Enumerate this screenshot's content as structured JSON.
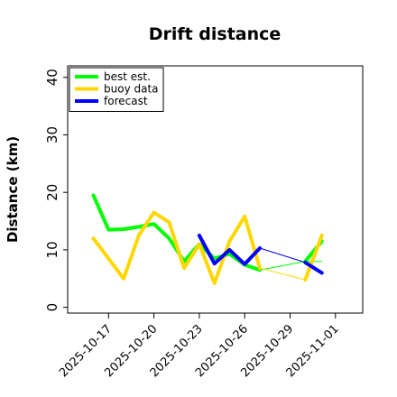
{
  "chart_data": {
    "type": "line",
    "title": "Drift distance",
    "xlabel": "",
    "ylabel": "Distance (km)",
    "y_ticks": [
      "0",
      "10",
      "20",
      "30",
      "40"
    ],
    "ylim": [
      -1,
      42
    ],
    "x_tick_labels": [
      "2025-10-17",
      "2025-10-20",
      "2025-10-23",
      "2025-10-26",
      "2025-10-29",
      "2025-11-01"
    ],
    "x_tick_days": [
      17,
      20,
      23,
      26,
      29,
      32
    ],
    "highlight_tick_index": 2,
    "highlight_color": "#2e8b2e",
    "xlim_days": [
      14.3,
      33.8
    ],
    "legend_position": "top-left",
    "legend": [
      {
        "label": "best est.",
        "color": "#00ff00"
      },
      {
        "label": "buoy data",
        "color": "#ffd700"
      },
      {
        "label": "forecast",
        "color": "#0000ff"
      }
    ],
    "series": [
      {
        "name": "best est.",
        "color": "#00ff00",
        "width": 4,
        "points": [
          [
            16.0,
            19.5
          ],
          [
            17.0,
            13.5
          ],
          [
            18.0,
            13.6
          ],
          [
            19.0,
            14.0
          ],
          [
            20.0,
            14.5
          ],
          [
            21.0,
            12.0
          ],
          [
            22.0,
            8.0
          ],
          [
            23.0,
            11.0
          ],
          [
            24.0,
            8.5
          ],
          [
            25.0,
            9.3
          ],
          [
            26.0,
            7.4
          ],
          [
            27.0,
            6.5
          ]
        ]
      },
      {
        "name": "best est. (thin)",
        "color": "#00ff00",
        "width": 1,
        "points": [
          [
            27.0,
            6.5
          ],
          [
            30.0,
            8.0
          ],
          [
            31.1,
            8.0
          ]
        ]
      },
      {
        "name": "best est. (end)",
        "color": "#00ff00",
        "width": 4,
        "points": [
          [
            30.0,
            8.0
          ],
          [
            31.1,
            11.5
          ]
        ]
      },
      {
        "name": "buoy data",
        "color": "#ffd700",
        "width": 4,
        "points": [
          [
            16.0,
            12.0
          ],
          [
            18.0,
            5.0
          ],
          [
            19.0,
            12.5
          ],
          [
            20.0,
            16.5
          ],
          [
            21.0,
            14.8
          ],
          [
            22.0,
            6.8
          ],
          [
            23.0,
            11.0
          ],
          [
            24.0,
            4.2
          ],
          [
            25.0,
            11.5
          ],
          [
            26.0,
            15.8
          ],
          [
            27.0,
            6.8
          ]
        ]
      },
      {
        "name": "buoy data (thin)",
        "color": "#ffd700",
        "width": 1,
        "points": [
          [
            27.0,
            6.8
          ],
          [
            30.0,
            4.8
          ]
        ]
      },
      {
        "name": "buoy data (end)",
        "color": "#ffd700",
        "width": 4,
        "points": [
          [
            30.0,
            4.8
          ],
          [
            31.1,
            12.5
          ]
        ]
      },
      {
        "name": "forecast",
        "color": "#0000ff",
        "width": 4,
        "points": [
          [
            23.0,
            12.5
          ],
          [
            24.0,
            7.6
          ],
          [
            25.0,
            10.0
          ],
          [
            26.0,
            7.5
          ],
          [
            27.0,
            10.3
          ]
        ]
      },
      {
        "name": "forecast (thin)",
        "color": "#0000ff",
        "width": 1,
        "points": [
          [
            27.0,
            10.3
          ],
          [
            30.0,
            7.8
          ]
        ]
      },
      {
        "name": "forecast (end)",
        "color": "#0000ff",
        "width": 4,
        "points": [
          [
            30.0,
            7.8
          ],
          [
            31.1,
            6.0
          ]
        ]
      }
    ]
  }
}
